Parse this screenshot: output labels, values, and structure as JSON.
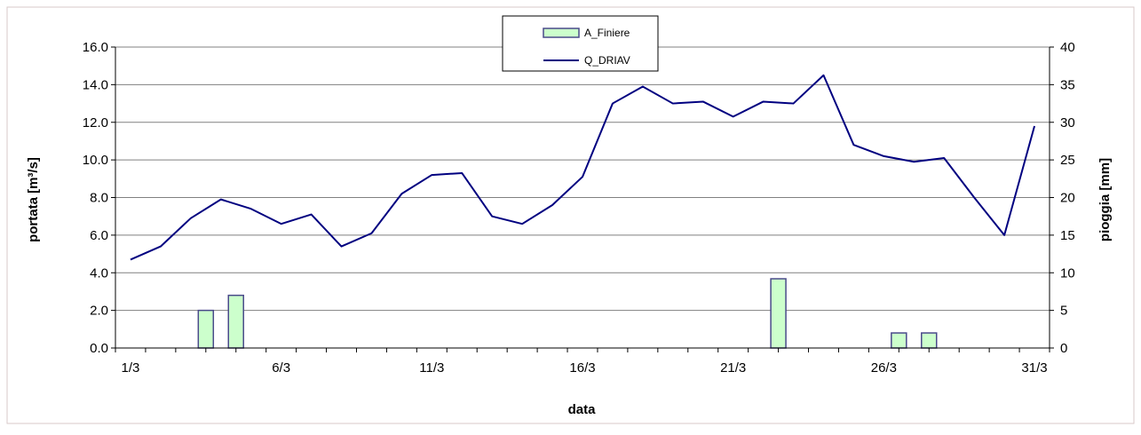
{
  "chart_data": {
    "type": "bar+line",
    "title": "",
    "xlabel": "data",
    "ylabel_left": "portata [m³/s]",
    "ylabel_right": "pioggia [mm]",
    "ylim_left": [
      0,
      16
    ],
    "ylim_right": [
      0,
      40
    ],
    "yticks_left": [
      "0.0",
      "2.0",
      "4.0",
      "6.0",
      "8.0",
      "10.0",
      "12.0",
      "14.0",
      "16.0"
    ],
    "yticks_right": [
      "0",
      "5",
      "10",
      "15",
      "20",
      "25",
      "30",
      "35",
      "40"
    ],
    "xticks": [
      {
        "day": 1,
        "label": "1/3"
      },
      {
        "day": 6,
        "label": "6/3"
      },
      {
        "day": 11,
        "label": "11/3"
      },
      {
        "day": 16,
        "label": "16/3"
      },
      {
        "day": 21,
        "label": "21/3"
      },
      {
        "day": 26,
        "label": "26/3"
      },
      {
        "day": 31,
        "label": "31/3"
      }
    ],
    "grid": "horizontal",
    "legend_position": "top-center",
    "series": [
      {
        "name": "A_Finiere",
        "type": "bar",
        "axis": "right",
        "color": "#ccffcc",
        "border": "#4a4a8a",
        "points": [
          {
            "day": 3,
            "value": 5
          },
          {
            "day": 4,
            "value": 7
          },
          {
            "day": 22,
            "value": 9.2
          },
          {
            "day": 26,
            "value": 2
          },
          {
            "day": 27,
            "value": 2
          }
        ]
      },
      {
        "name": "Q_DRIAV",
        "type": "line",
        "axis": "left",
        "color": "#000080",
        "days": [
          1,
          2,
          3,
          4,
          5,
          6,
          7,
          8,
          9,
          10,
          11,
          12,
          13,
          14,
          15,
          16,
          17,
          18,
          19,
          20,
          21,
          22,
          23,
          24,
          25,
          26,
          27,
          28,
          29,
          30,
          31
        ],
        "values": [
          4.7,
          5.4,
          6.9,
          7.9,
          7.4,
          6.6,
          7.1,
          5.4,
          6.1,
          8.2,
          9.2,
          9.3,
          7.0,
          6.6,
          7.6,
          9.1,
          13.0,
          13.9,
          13.0,
          13.1,
          12.3,
          13.1,
          13.0,
          14.5,
          10.8,
          10.2,
          9.9,
          10.1,
          8.0,
          6.0,
          11.8
        ]
      }
    ]
  }
}
